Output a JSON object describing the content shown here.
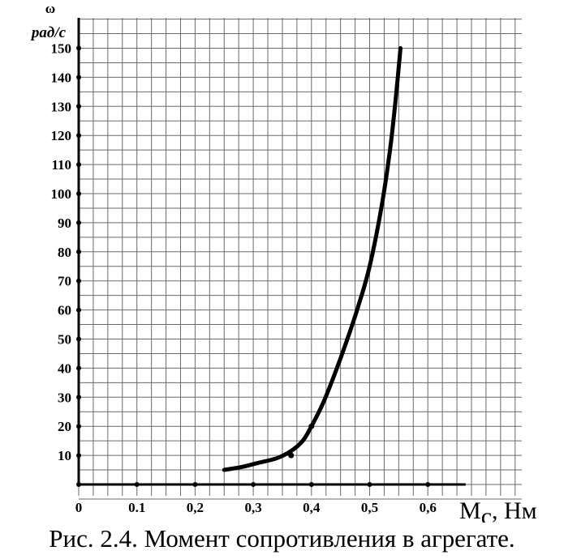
{
  "chart_data": {
    "type": "line",
    "title": "",
    "ylabel_symbol": "ω",
    "ylabel_unit": "рад/с",
    "xlabel_symbol": "M",
    "xlabel_subscript": "с",
    "xlabel_unit": ", Нм",
    "xlim": [
      0,
      0.73
    ],
    "ylim": [
      0,
      162
    ],
    "grid": true,
    "x_ticks": [
      0,
      0.1,
      0.2,
      0.3,
      0.4,
      0.5,
      0.6
    ],
    "x_tick_labels": [
      "0",
      "0.1",
      "0,2",
      "0,3",
      "0,4",
      "0,5",
      "0,6"
    ],
    "y_ticks": [
      10,
      20,
      30,
      40,
      50,
      60,
      70,
      80,
      90,
      100,
      110,
      120,
      130,
      140,
      150
    ],
    "y_tick_labels": [
      "10",
      "20",
      "30",
      "40",
      "50",
      "60",
      "70",
      "80",
      "90",
      "100",
      "110",
      "120",
      "130",
      "140",
      "150"
    ],
    "series": [
      {
        "x": [
          0.25,
          0.28,
          0.31,
          0.34,
          0.365,
          0.385,
          0.4,
          0.42,
          0.44,
          0.46,
          0.48,
          0.5,
          0.52,
          0.535,
          0.545,
          0.553
        ],
        "y": [
          5,
          6,
          7.5,
          9,
          11.5,
          15,
          20,
          28,
          38,
          49,
          61,
          75,
          95,
          115,
          133,
          150
        ]
      }
    ],
    "markers": [
      {
        "x": 0.365,
        "y": 10
      },
      {
        "x": 0.4,
        "y": 20
      }
    ]
  },
  "caption": "Рис. 2.4. Момент сопротивления в агрегате."
}
